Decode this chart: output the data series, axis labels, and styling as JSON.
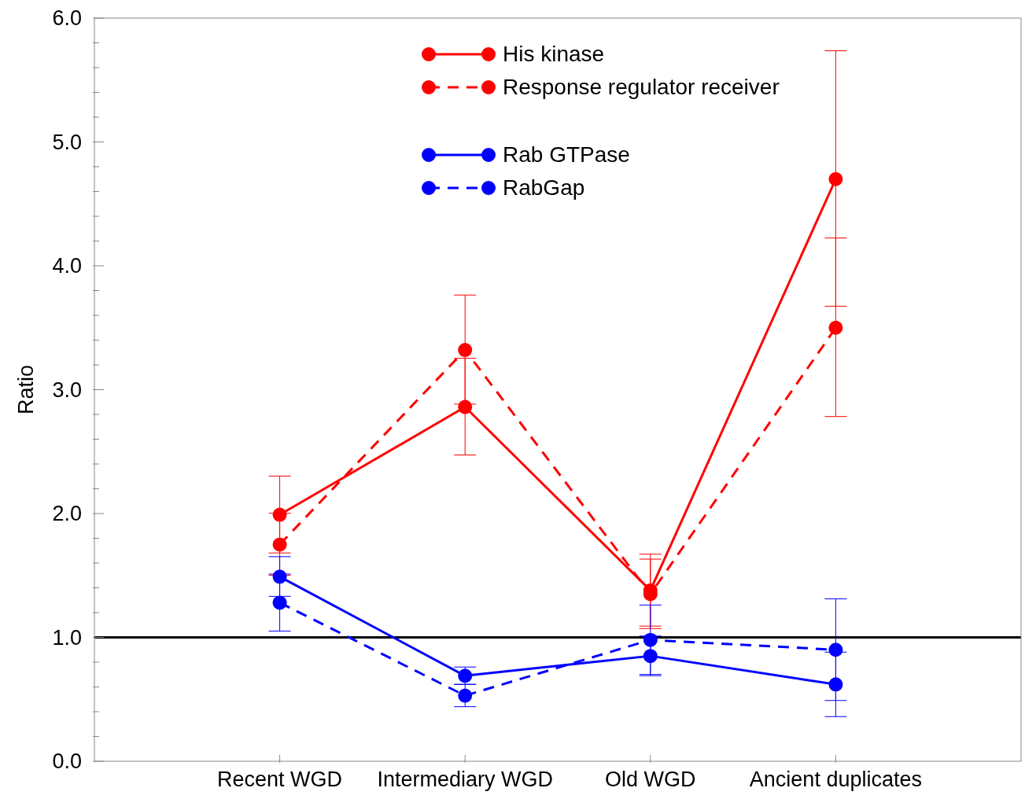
{
  "chart_data": {
    "type": "line",
    "ylabel": "Ratio",
    "categories": [
      "Recent WGD",
      "Intermediary WGD",
      "Old WGD",
      "Ancient duplicates"
    ],
    "series": [
      {
        "name": "His kinase",
        "color": "#ff0000",
        "line_style": "solid",
        "values": [
          1.99,
          2.86,
          1.38,
          4.7
        ],
        "errors": [
          0.31,
          0.39,
          0.29,
          1.03
        ]
      },
      {
        "name": "Response regulator receiver",
        "color": "#ff0000",
        "line_style": "dashed",
        "values": [
          1.75,
          3.32,
          1.35,
          3.5
        ],
        "errors": [
          0.25,
          0.44,
          0.28,
          0.72
        ]
      },
      {
        "name": "Rab GTPase",
        "color": "#0000ff",
        "line_style": "solid",
        "values": [
          1.49,
          0.69,
          0.85,
          0.62
        ],
        "errors": [
          0.16,
          0.07,
          0.16,
          0.26
        ]
      },
      {
        "name": "RabGap",
        "color": "#0000ff",
        "line_style": "dashed",
        "values": [
          1.28,
          0.53,
          0.98,
          0.9
        ],
        "errors": [
          0.23,
          0.09,
          0.28,
          0.41
        ]
      }
    ],
    "ylim": [
      0,
      6
    ],
    "yticks": [
      {
        "value": 0,
        "label": "0.0"
      },
      {
        "value": 0.2,
        "label": null
      },
      {
        "value": 0.4,
        "label": null
      },
      {
        "value": 0.6,
        "label": null
      },
      {
        "value": 0.8,
        "label": null
      },
      {
        "value": 1,
        "label": "1.0"
      },
      {
        "value": 1.2,
        "label": null
      },
      {
        "value": 1.4,
        "label": null
      },
      {
        "value": 1.6,
        "label": null
      },
      {
        "value": 1.8,
        "label": null
      },
      {
        "value": 2,
        "label": "2.0"
      },
      {
        "value": 2.2,
        "label": null
      },
      {
        "value": 2.4,
        "label": null
      },
      {
        "value": 2.6,
        "label": null
      },
      {
        "value": 2.8,
        "label": null
      },
      {
        "value": 3,
        "label": "3.0"
      },
      {
        "value": 3.2,
        "label": null
      },
      {
        "value": 3.4,
        "label": null
      },
      {
        "value": 3.6,
        "label": null
      },
      {
        "value": 3.8,
        "label": null
      },
      {
        "value": 4,
        "label": "4.0"
      },
      {
        "value": 4.2,
        "label": null
      },
      {
        "value": 4.4,
        "label": null
      },
      {
        "value": 4.6,
        "label": null
      },
      {
        "value": 4.8,
        "label": null
      },
      {
        "value": 5,
        "label": "5.0"
      },
      {
        "value": 5.2,
        "label": null
      },
      {
        "value": 5.4,
        "label": null
      },
      {
        "value": 5.6,
        "label": null
      },
      {
        "value": 5.8,
        "label": null
      },
      {
        "value": 6,
        "label": "6.0"
      }
    ],
    "ref_lines": [
      {
        "axis": "y",
        "value": 1,
        "color": "#000000"
      }
    ],
    "legend": "top",
    "marker": "circle",
    "grid": false
  }
}
